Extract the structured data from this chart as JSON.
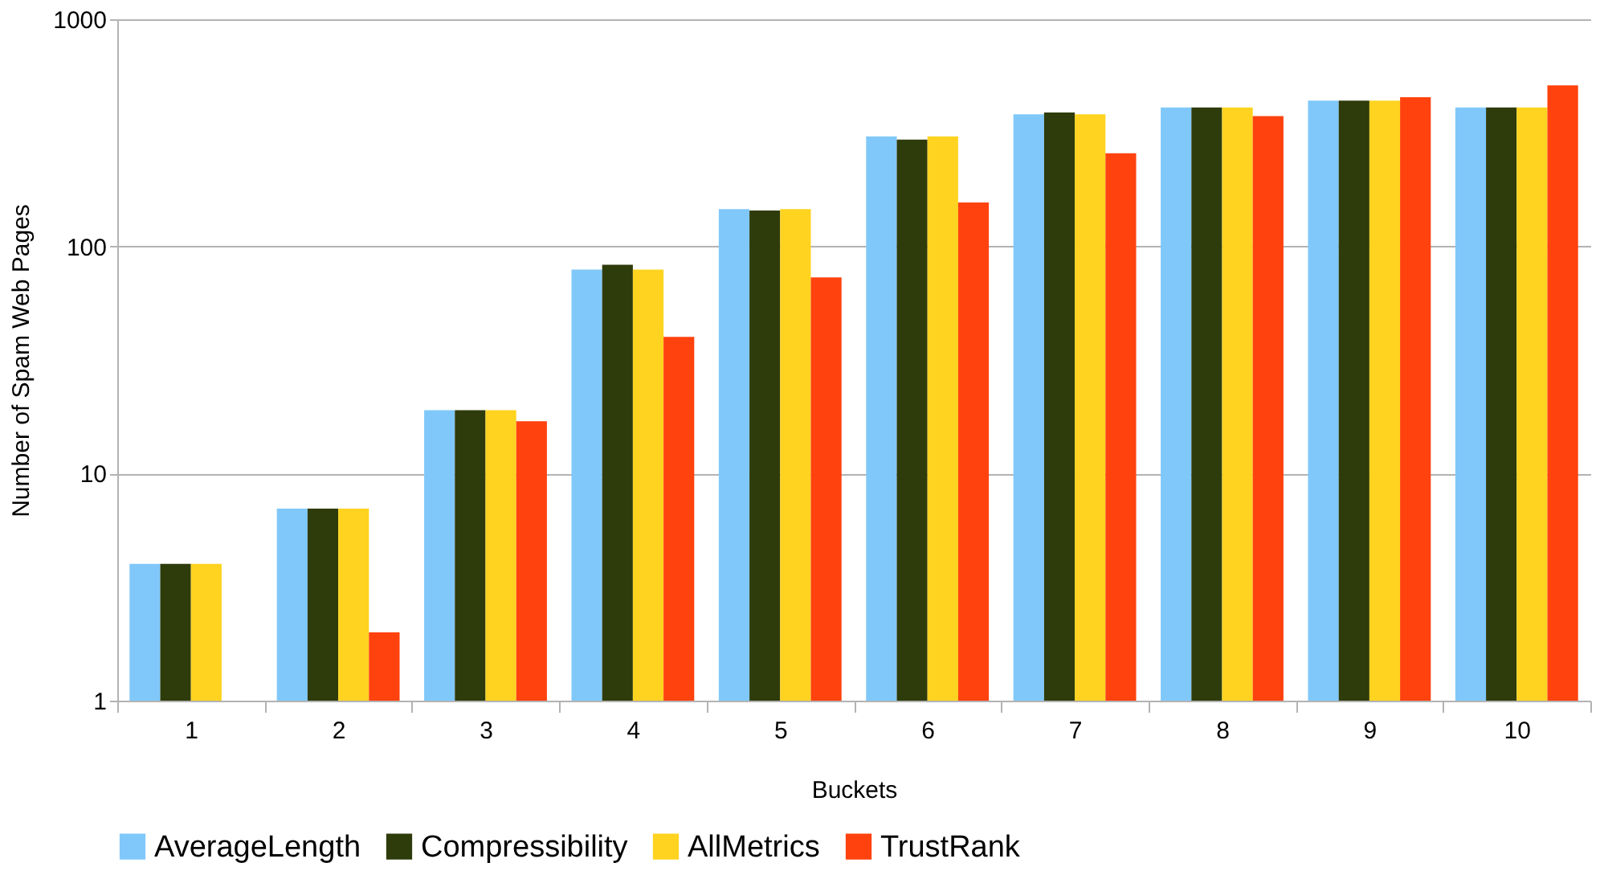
{
  "chart_data": {
    "type": "bar",
    "xlabel": "Buckets",
    "ylabel": "Number of Spam Web Pages",
    "categories": [
      "1",
      "2",
      "3",
      "4",
      "5",
      "6",
      "7",
      "8",
      "9",
      "10"
    ],
    "series": [
      {
        "name": "AverageLength",
        "color": "#80c8fa",
        "values": [
          4,
          7,
          19,
          79,
          146,
          305,
          382,
          409,
          438,
          409
        ]
      },
      {
        "name": "Compressibility",
        "color": "#2e3b0b",
        "values": [
          4,
          7,
          19,
          83,
          144,
          295,
          389,
          409,
          438,
          409
        ]
      },
      {
        "name": "AllMetrics",
        "color": "#ffd320",
        "values": [
          4,
          7,
          19,
          79,
          146,
          305,
          382,
          409,
          438,
          409
        ]
      },
      {
        "name": "TrustRank",
        "color": "#ff420e",
        "values": [
          null,
          2,
          17,
          40,
          73,
          156,
          257,
          375,
          454,
          512
        ]
      }
    ],
    "log": "y",
    "ylim": [
      1,
      1000
    ],
    "yticks": [
      1,
      10,
      100,
      1000
    ],
    "grid": "y",
    "legend": "bottom"
  }
}
